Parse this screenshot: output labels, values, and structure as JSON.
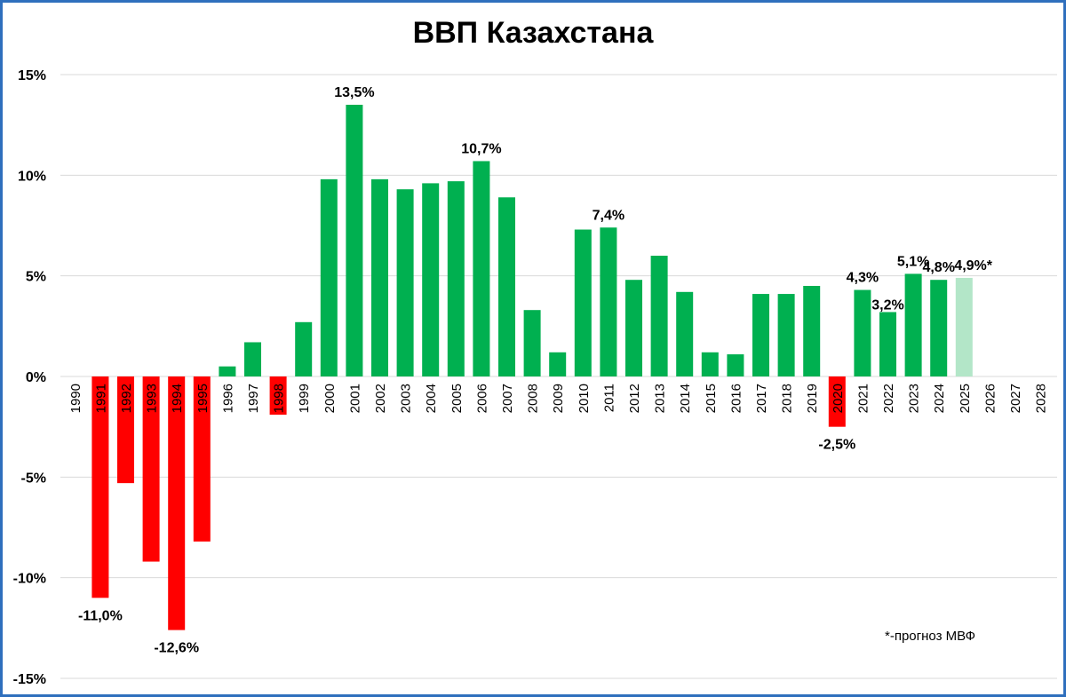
{
  "chart_data": {
    "type": "bar",
    "title": "ВВП Казахстана",
    "note": "*-прогноз МВФ",
    "xlabel": "",
    "ylabel": "",
    "ylim": [
      -15,
      15
    ],
    "yticks": [
      15,
      10,
      5,
      0,
      -5,
      -10,
      -15
    ],
    "ytick_labels": [
      "15%",
      "10%",
      "5%",
      "0%",
      "-5%",
      "-10%",
      "-15%"
    ],
    "grid": true,
    "colors": {
      "positive": "#00b050",
      "negative": "#ff0000",
      "forecast": "#b3e6c8",
      "grid": "#d9d9d9",
      "frame": "#2f6fbd"
    },
    "categories": [
      "1990",
      "1991",
      "1992",
      "1993",
      "1994",
      "1995",
      "1996",
      "1997",
      "1998",
      "1999",
      "2000",
      "2001",
      "2002",
      "2003",
      "2004",
      "2005",
      "2006",
      "2007",
      "2008",
      "2009",
      "2010",
      "2011",
      "2012",
      "2013",
      "2014",
      "2015",
      "2016",
      "2017",
      "2018",
      "2019",
      "2020",
      "2021",
      "2022",
      "2023",
      "2024",
      "2025",
      "2026",
      "2027",
      "2028"
    ],
    "values": [
      null,
      -11.0,
      -5.3,
      -9.2,
      -12.6,
      -8.2,
      0.5,
      1.7,
      -1.9,
      2.7,
      9.8,
      13.5,
      9.8,
      9.3,
      9.6,
      9.7,
      10.7,
      8.9,
      3.3,
      1.2,
      7.3,
      7.4,
      4.8,
      6.0,
      4.2,
      1.2,
      1.1,
      4.1,
      4.1,
      4.5,
      -2.5,
      4.3,
      3.2,
      5.1,
      4.8,
      4.9,
      null,
      null,
      null
    ],
    "forecast": [
      "2025"
    ],
    "data_labels": [
      {
        "category": "1991",
        "text": "-11,0%"
      },
      {
        "category": "1994",
        "text": "-12,6%"
      },
      {
        "category": "2001",
        "text": "13,5%"
      },
      {
        "category": "2006",
        "text": "10,7%"
      },
      {
        "category": "2011",
        "text": "7,4%"
      },
      {
        "category": "2020",
        "text": "-2,5%"
      },
      {
        "category": "2021",
        "text": "4,3%"
      },
      {
        "category": "2022",
        "text": "3,2%"
      },
      {
        "category": "2023",
        "text": "5,1%"
      },
      {
        "category": "2024",
        "text": "4,8%"
      },
      {
        "category": "2025",
        "text": "4,9%*"
      }
    ]
  }
}
